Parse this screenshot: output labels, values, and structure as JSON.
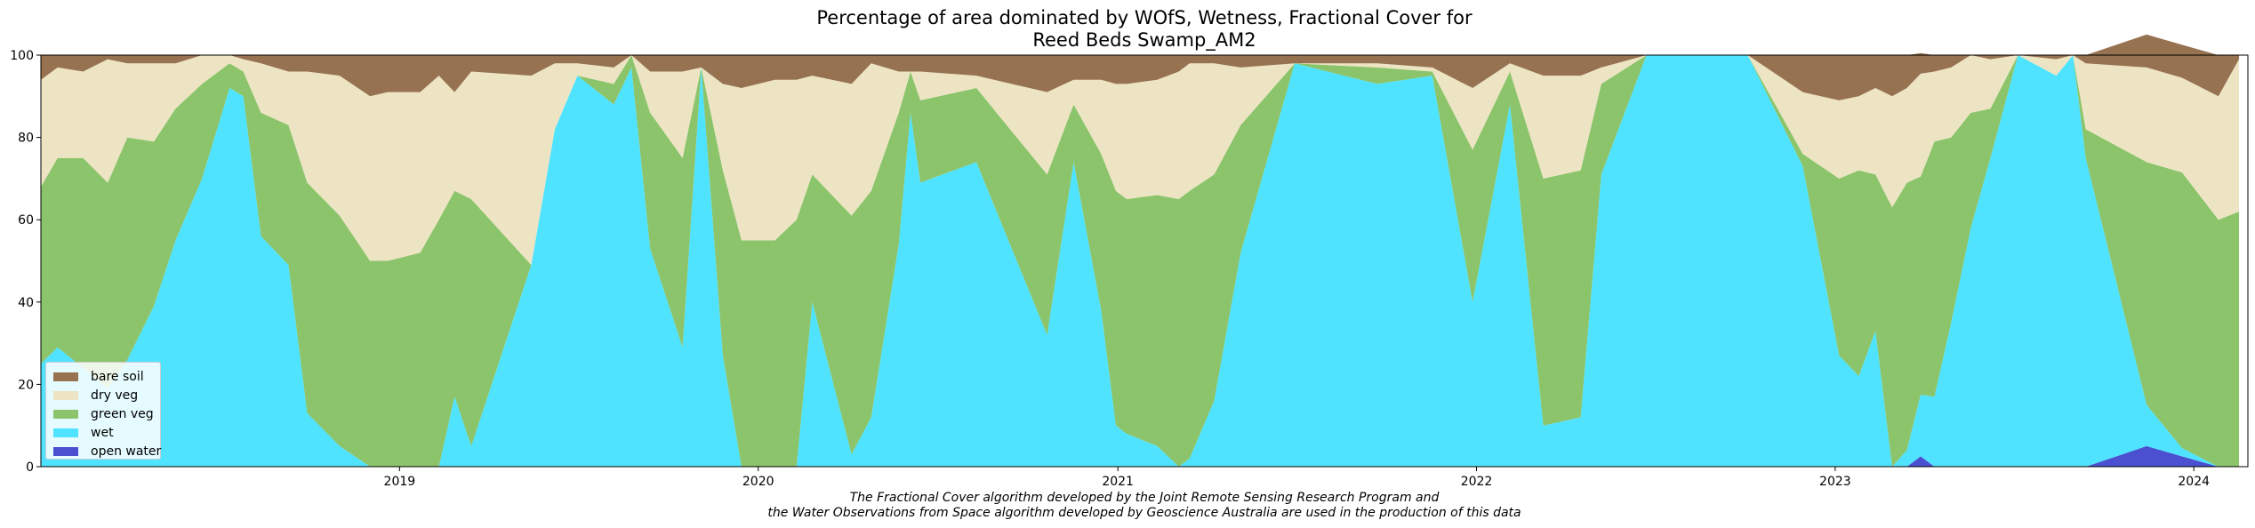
{
  "chart_data": {
    "type": "area",
    "title": "Percentage of area dominated by WOfS, Wetness, Fractional Cover for\nReed Beds Swamp_AM2",
    "xlabel": "",
    "ylabel": "",
    "xlim": [
      "2018-01-01",
      "2024-02-25"
    ],
    "ylim": [
      0,
      100
    ],
    "y_ticks": [
      0,
      20,
      40,
      60,
      80,
      100
    ],
    "x_ticks": [
      "2019",
      "2020",
      "2021",
      "2022",
      "2023",
      "2024"
    ],
    "legend_position": "lower-left",
    "caption": "The Fractional Cover algorithm developed by the Joint Remote Sensing Research Program and\nthe Water Observations from Space algorithm developed by Geoscience Australia are used in the production of this data",
    "x": [
      "2018-01-01",
      "2018-01-18",
      "2018-02-13",
      "2018-03-10",
      "2018-03-30",
      "2018-04-26",
      "2018-05-18",
      "2018-06-14",
      "2018-07-12",
      "2018-07-26",
      "2018-08-13",
      "2018-09-10",
      "2018-09-29",
      "2018-11-01",
      "2018-12-02",
      "2018-12-20",
      "2019-01-22",
      "2019-02-10",
      "2019-02-26",
      "2019-03-15",
      "2019-05-15",
      "2019-06-08",
      "2019-07-01",
      "2019-08-07",
      "2019-08-25",
      "2019-09-13",
      "2019-10-16",
      "2019-11-04",
      "2019-11-26",
      "2019-12-15",
      "2020-01-18",
      "2020-02-09",
      "2020-02-25",
      "2020-04-05",
      "2020-04-25",
      "2020-05-23",
      "2020-06-04",
      "2020-06-14",
      "2020-08-10",
      "2020-10-21",
      "2020-11-17",
      "2020-12-15",
      "2020-12-30",
      "2021-01-10",
      "2021-02-10",
      "2021-03-04",
      "2021-03-15",
      "2021-04-09",
      "2021-05-06",
      "2021-06-30",
      "2021-09-22",
      "2021-11-17",
      "2021-12-28",
      "2022-02-04",
      "2022-03-10",
      "2022-04-17",
      "2022-05-08",
      "2022-06-23",
      "2022-07-14",
      "2022-10-04",
      "2022-11-29",
      "2023-01-05",
      "2023-01-25",
      "2023-02-11",
      "2023-02-28",
      "2023-03-15",
      "2023-03-29",
      "2023-04-12",
      "2023-04-29",
      "2023-05-19",
      "2023-06-08",
      "2023-07-06",
      "2023-08-14",
      "2023-08-31",
      "2023-09-13",
      "2023-11-14",
      "2023-12-20",
      "2024-01-26",
      "2024-02-16"
    ],
    "series": [
      {
        "name": "open water",
        "color": "#4a50d0",
        "values": [
          0,
          0,
          0,
          0,
          0,
          0,
          0,
          0,
          0,
          0,
          0,
          0,
          0,
          0,
          0,
          0,
          0,
          0,
          0,
          0,
          0,
          0,
          0,
          0,
          0,
          0,
          0,
          0,
          0,
          0,
          0,
          0,
          0,
          0,
          0,
          0,
          0,
          0,
          0,
          0,
          0,
          0,
          0,
          0,
          0,
          0,
          0,
          0,
          0,
          0,
          0,
          0,
          0,
          0,
          0,
          0,
          0,
          0,
          0,
          0,
          0,
          0,
          0,
          0,
          0,
          0,
          2.5,
          0,
          0,
          0,
          0,
          0,
          0,
          0,
          0,
          5,
          2.5,
          0,
          0
        ]
      },
      {
        "name": "wet",
        "color": "#4fe3ff",
        "values": [
          25,
          29,
          24,
          19,
          26,
          39,
          55,
          70,
          92,
          90,
          56,
          49,
          13,
          5,
          0,
          0,
          0,
          0,
          17,
          5,
          49,
          82,
          95,
          88,
          97,
          53,
          29,
          97,
          27,
          0,
          0,
          0,
          40,
          3,
          12,
          54,
          86,
          69,
          74,
          32,
          74,
          38,
          10,
          8,
          5,
          0,
          2,
          16,
          52,
          98,
          93,
          95,
          40,
          88,
          10,
          12,
          71,
          100,
          100,
          100,
          73,
          27,
          22,
          33,
          0,
          4,
          15,
          17,
          35,
          58,
          75,
          100,
          95,
          100,
          75,
          10,
          2,
          0,
          0
        ]
      },
      {
        "name": "green veg",
        "color": "#8bc46a",
        "values": [
          43,
          46,
          51,
          50,
          54,
          40,
          32,
          23,
          6,
          6,
          30,
          34,
          56,
          56,
          50,
          50,
          52,
          60,
          50,
          60,
          0,
          0,
          0,
          5,
          3,
          33,
          46,
          0,
          45,
          55,
          55,
          60,
          31,
          58,
          55,
          32,
          10,
          20,
          18,
          39,
          14,
          38,
          57,
          57,
          61,
          65,
          65,
          55,
          31,
          0,
          4,
          1,
          37,
          8,
          60,
          60,
          22,
          0,
          0,
          0,
          3,
          43,
          50,
          38,
          63,
          65,
          53,
          62,
          45,
          28,
          12,
          0,
          0,
          0,
          7,
          59,
          67,
          60,
          62
        ]
      },
      {
        "name": "dry veg",
        "color": "#ede4c3",
        "values": [
          26,
          22,
          21,
          30,
          18,
          19,
          11,
          7,
          2,
          3,
          12,
          13,
          27,
          34,
          40,
          41,
          39,
          35,
          24,
          31,
          46,
          16,
          3,
          4,
          0,
          10,
          21,
          0,
          21,
          37,
          39,
          34,
          24,
          32,
          31,
          10,
          0,
          7,
          3,
          20,
          6,
          18,
          26,
          28,
          28,
          31,
          31,
          27,
          14,
          0,
          1,
          1,
          15,
          2,
          25,
          23,
          4,
          0,
          0,
          0,
          15,
          19,
          18,
          21,
          27,
          23,
          25,
          17,
          17,
          14,
          12,
          0,
          4,
          0,
          16,
          23,
          23,
          30,
          37
        ]
      },
      {
        "name": "bare soil",
        "color": "#967251",
        "values": [
          6,
          3,
          4,
          1,
          2,
          2,
          2,
          0,
          0,
          1,
          2,
          4,
          4,
          5,
          10,
          9,
          9,
          5,
          9,
          4,
          5,
          2,
          2,
          3,
          0,
          4,
          4,
          3,
          7,
          8,
          6,
          6,
          5,
          7,
          2,
          4,
          4,
          4,
          5,
          9,
          6,
          6,
          7,
          7,
          6,
          4,
          2,
          2,
          3,
          2,
          2,
          3,
          8,
          2,
          5,
          5,
          3,
          0,
          0,
          0,
          9,
          11,
          10,
          8,
          10,
          8,
          5,
          4,
          3,
          0,
          1,
          0,
          1,
          0,
          2,
          8,
          8,
          10,
          1
        ]
      }
    ]
  }
}
